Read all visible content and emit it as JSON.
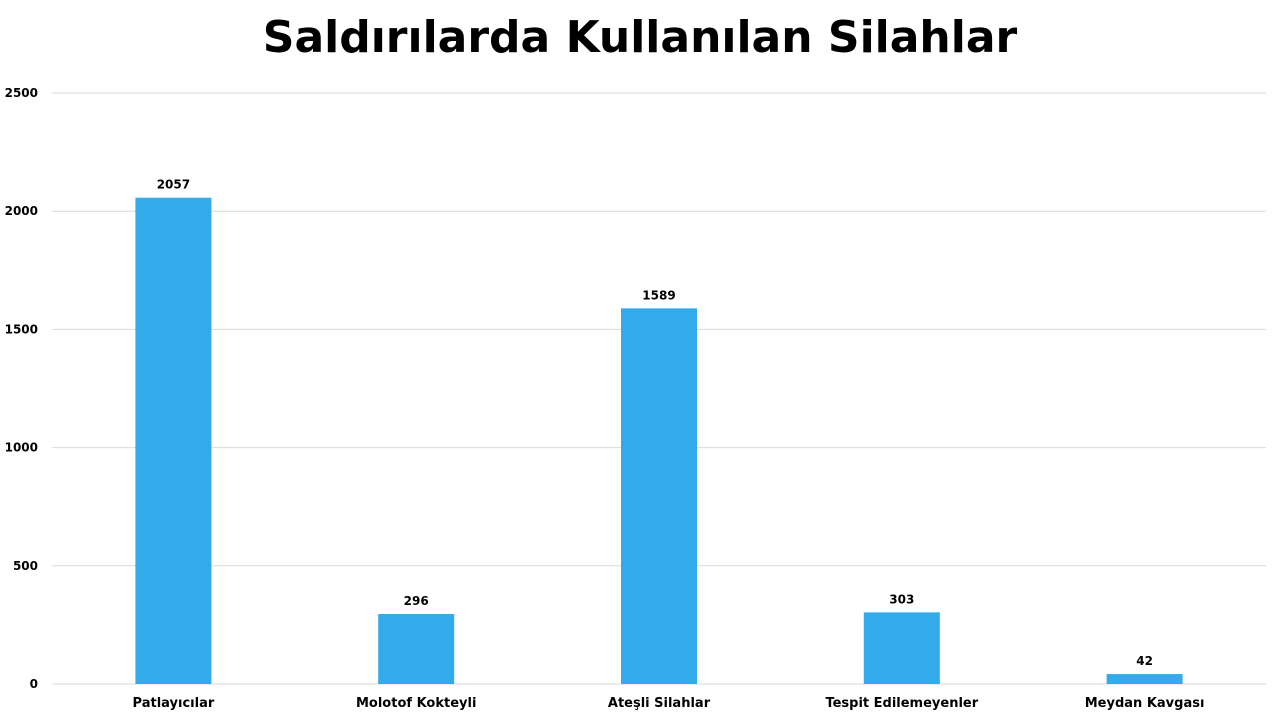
{
  "chart_data": {
    "type": "bar",
    "title": "Saldırılarda Kullanılan Silahlar",
    "categories": [
      "Patlayıcılar",
      "Molotof Kokteyli",
      "Ateşli Silahlar",
      "Tespit Edilemeyenler",
      "Meydan Kavgası"
    ],
    "values": [
      2057,
      296,
      1589,
      303,
      42
    ],
    "ylim": [
      0,
      2500
    ],
    "yticks": [
      0,
      500,
      1000,
      1500,
      2000,
      2500
    ],
    "grid": true,
    "legend": "none",
    "bar_color": "#33aaea",
    "gridline_color": "#d9d9d9"
  }
}
